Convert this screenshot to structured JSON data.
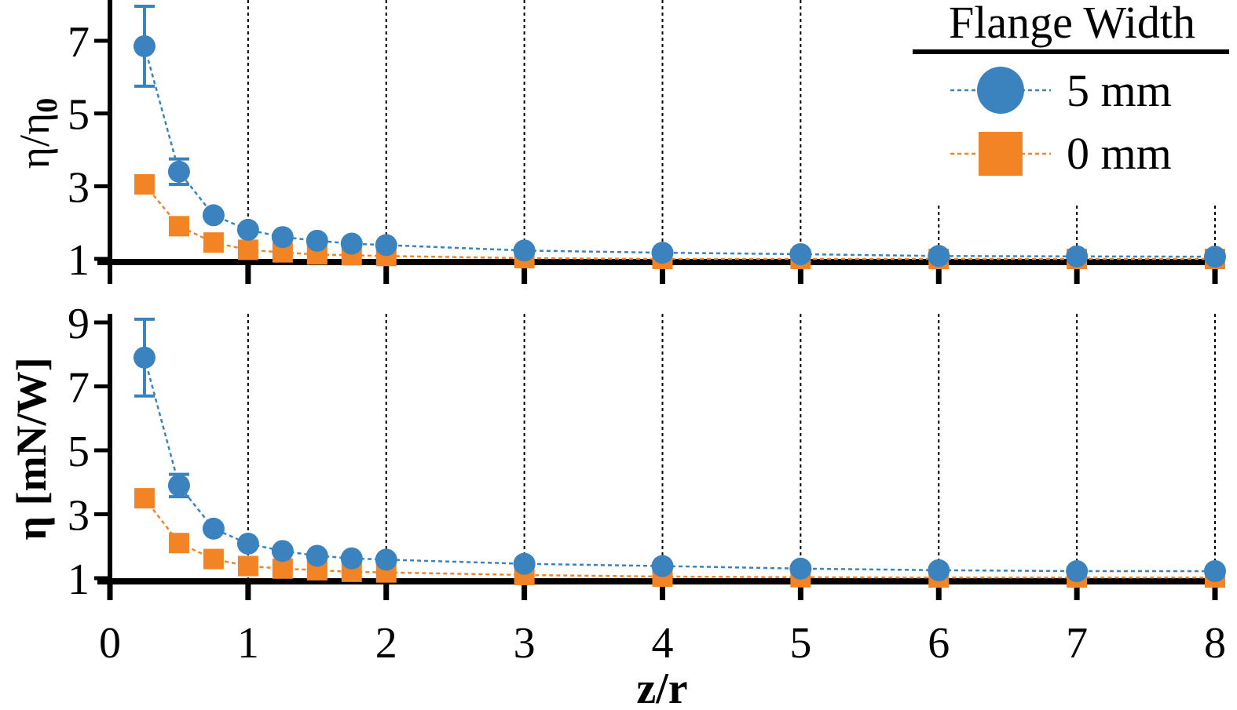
{
  "chart_data": [
    {
      "type": "scatter",
      "panel": "top",
      "ylabel_main": "η/η",
      "ylabel_sub": "0",
      "xlabel": "",
      "ylim": [
        1,
        7
      ],
      "yticks": [
        1,
        3,
        5,
        7
      ],
      "xlim": [
        0,
        8
      ],
      "grid_verticals": [
        1,
        2,
        3,
        4,
        5,
        6,
        7,
        8
      ],
      "legend_title": "Flange Width",
      "legend_position": "top-right",
      "series": [
        {
          "name": "5 mm",
          "marker": "circle",
          "color": "#3a83bf",
          "x": [
            0.25,
            0.5,
            0.75,
            1.0,
            1.25,
            1.5,
            1.75,
            2.0,
            3.0,
            4.0,
            5.0,
            6.0,
            7.0,
            8.0
          ],
          "y": [
            6.85,
            3.4,
            2.2,
            1.8,
            1.6,
            1.5,
            1.42,
            1.38,
            1.23,
            1.17,
            1.13,
            1.08,
            1.07,
            1.06
          ],
          "yerr": [
            1.1,
            0.35,
            0,
            0,
            0,
            0,
            0,
            0,
            0,
            0,
            0,
            0,
            0,
            0
          ]
        },
        {
          "name": "0 mm",
          "marker": "square",
          "color": "#f38426",
          "x": [
            0.25,
            0.5,
            0.75,
            1.0,
            1.25,
            1.5,
            1.75,
            2.0,
            3.0,
            4.0,
            5.0,
            6.0,
            7.0,
            8.0
          ],
          "y": [
            3.05,
            1.9,
            1.45,
            1.25,
            1.18,
            1.12,
            1.1,
            1.08,
            1.02,
            1.0,
            1.0,
            1.0,
            1.0,
            1.0
          ],
          "yerr": [
            0,
            0,
            0,
            0,
            0,
            0,
            0,
            0,
            0,
            0,
            0,
            0,
            0,
            0
          ]
        }
      ]
    },
    {
      "type": "scatter",
      "panel": "bottom",
      "ylabel_main": "η [mN/W]",
      "xlabel": "z/r",
      "ylim": [
        1,
        9
      ],
      "yticks": [
        1,
        3,
        5,
        7,
        9
      ],
      "xlim": [
        0,
        8
      ],
      "xticks": [
        0,
        1,
        2,
        3,
        4,
        5,
        6,
        7,
        8
      ],
      "grid_verticals": [
        1,
        2,
        3,
        4,
        5,
        6,
        7,
        8
      ],
      "series": [
        {
          "name": "5 mm",
          "marker": "circle",
          "color": "#3a83bf",
          "x": [
            0.25,
            0.5,
            0.75,
            1.0,
            1.25,
            1.5,
            1.75,
            2.0,
            3.0,
            4.0,
            5.0,
            6.0,
            7.0,
            8.0
          ],
          "y": [
            7.9,
            3.9,
            2.55,
            2.08,
            1.85,
            1.7,
            1.62,
            1.58,
            1.45,
            1.38,
            1.3,
            1.25,
            1.22,
            1.22
          ],
          "yerr": [
            1.2,
            0.35,
            0,
            0,
            0,
            0,
            0,
            0,
            0,
            0,
            0,
            0,
            0,
            0
          ]
        },
        {
          "name": "0 mm",
          "marker": "square",
          "color": "#f38426",
          "x": [
            0.25,
            0.5,
            0.75,
            1.0,
            1.25,
            1.5,
            1.75,
            2.0,
            3.0,
            4.0,
            5.0,
            6.0,
            7.0,
            8.0
          ],
          "y": [
            3.5,
            2.1,
            1.6,
            1.38,
            1.3,
            1.25,
            1.2,
            1.18,
            1.1,
            1.05,
            1.03,
            1.02,
            1.02,
            1.02
          ],
          "yerr": [
            0,
            0,
            0,
            0,
            0,
            0,
            0,
            0,
            0,
            0,
            0,
            0,
            0,
            0
          ]
        }
      ]
    }
  ]
}
